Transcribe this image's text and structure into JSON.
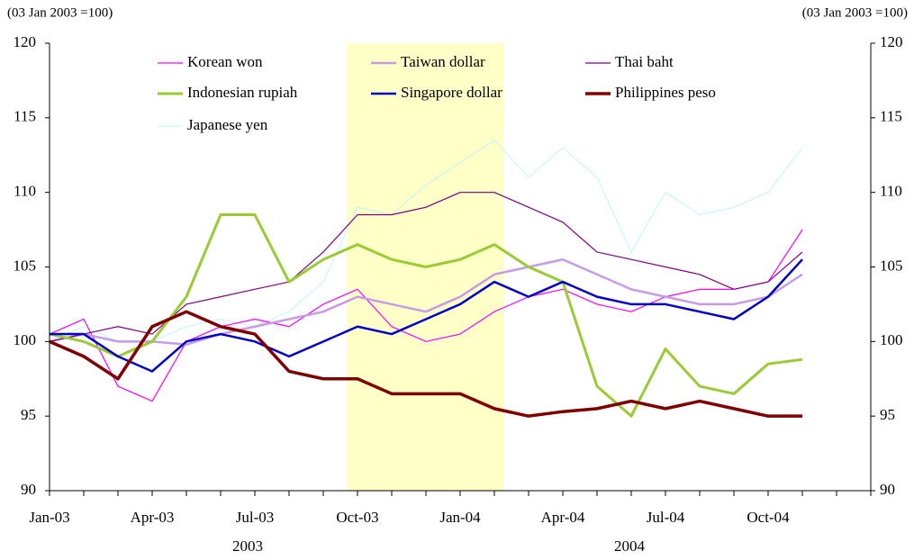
{
  "chart_data": {
    "type": "line",
    "y_unit_label": "(03 Jan 2003 =100)",
    "y2_unit_label": "(03 Jan 2003 =100)",
    "categories": [
      "Jan-03",
      null,
      null,
      "Apr-03",
      null,
      null,
      "Jul-03",
      null,
      null,
      "Oct-03",
      null,
      null,
      "Jan-04",
      null,
      null,
      "Apr-04",
      null,
      null,
      "Jul-04",
      null,
      null,
      "Oct-04",
      null,
      null
    ],
    "year_labels": [
      "2003",
      "2004"
    ],
    "ylim": [
      90,
      120
    ],
    "yticks": [
      90,
      95,
      100,
      105,
      110,
      115,
      120
    ],
    "y2lim": [
      90,
      120
    ],
    "y2ticks": [
      90,
      95,
      100,
      105,
      110,
      115,
      120
    ],
    "series": [
      {
        "name": "Korean won",
        "color": "#ff00ff",
        "values": [
          100.5,
          101.5,
          97,
          96,
          100,
          101,
          101.5,
          101,
          102.5,
          103.5,
          101,
          100,
          100.5,
          102,
          103,
          103.5,
          102.5,
          102,
          103,
          103.5,
          103.5,
          104,
          107.5,
          null
        ]
      },
      {
        "name": "Taiwan dollar",
        "color": "#c89be6",
        "values": [
          100,
          100.5,
          100,
          100,
          99.8,
          100.5,
          101,
          101.5,
          102,
          103,
          102.5,
          102,
          103,
          104.5,
          105,
          105.5,
          104.5,
          103.5,
          103,
          102.5,
          102.5,
          103,
          104.5,
          null
        ]
      },
      {
        "name": "Thai baht",
        "color": "#800080",
        "values": [
          100,
          100.5,
          101,
          100.5,
          102.5,
          103,
          103.5,
          104,
          106,
          108.5,
          108.5,
          109,
          110,
          110,
          109,
          108,
          106,
          105.5,
          105,
          104.5,
          103.5,
          104,
          106,
          null
        ]
      },
      {
        "name": "Indonesian rupiah",
        "color": "#99cc33",
        "values": [
          100.5,
          100,
          99,
          100,
          103,
          108.5,
          108.5,
          104,
          105.5,
          106.5,
          105.5,
          105,
          105.5,
          106.5,
          105,
          104,
          97,
          95,
          99.5,
          97,
          96.5,
          98.5,
          98.8,
          null
        ]
      },
      {
        "name": "Singapore dollar",
        "color": "#0000cc",
        "values": [
          100.5,
          100.5,
          99,
          98,
          100,
          100.5,
          100,
          99,
          100,
          101,
          100.5,
          101.5,
          102.5,
          104,
          103,
          104,
          103,
          102.5,
          102.5,
          102,
          101.5,
          103,
          105.5,
          null
        ]
      },
      {
        "name": "Philippines peso",
        "color": "#800000",
        "values": [
          100,
          99,
          97.5,
          101,
          102,
          101,
          100.5,
          98,
          97.5,
          97.5,
          96.5,
          96.5,
          96.5,
          95.5,
          95,
          95.3,
          95.5,
          96,
          95.5,
          96,
          95.5,
          95,
          95,
          null
        ]
      },
      {
        "name": "Japanese yen",
        "color": "#bdf5f5",
        "values": [
          100,
          101,
          100,
          100,
          101,
          101.5,
          101,
          102,
          104,
          109,
          108.5,
          110.5,
          112,
          113.5,
          111,
          113,
          111,
          106,
          110,
          108.5,
          109,
          110,
          113,
          null
        ]
      }
    ]
  }
}
